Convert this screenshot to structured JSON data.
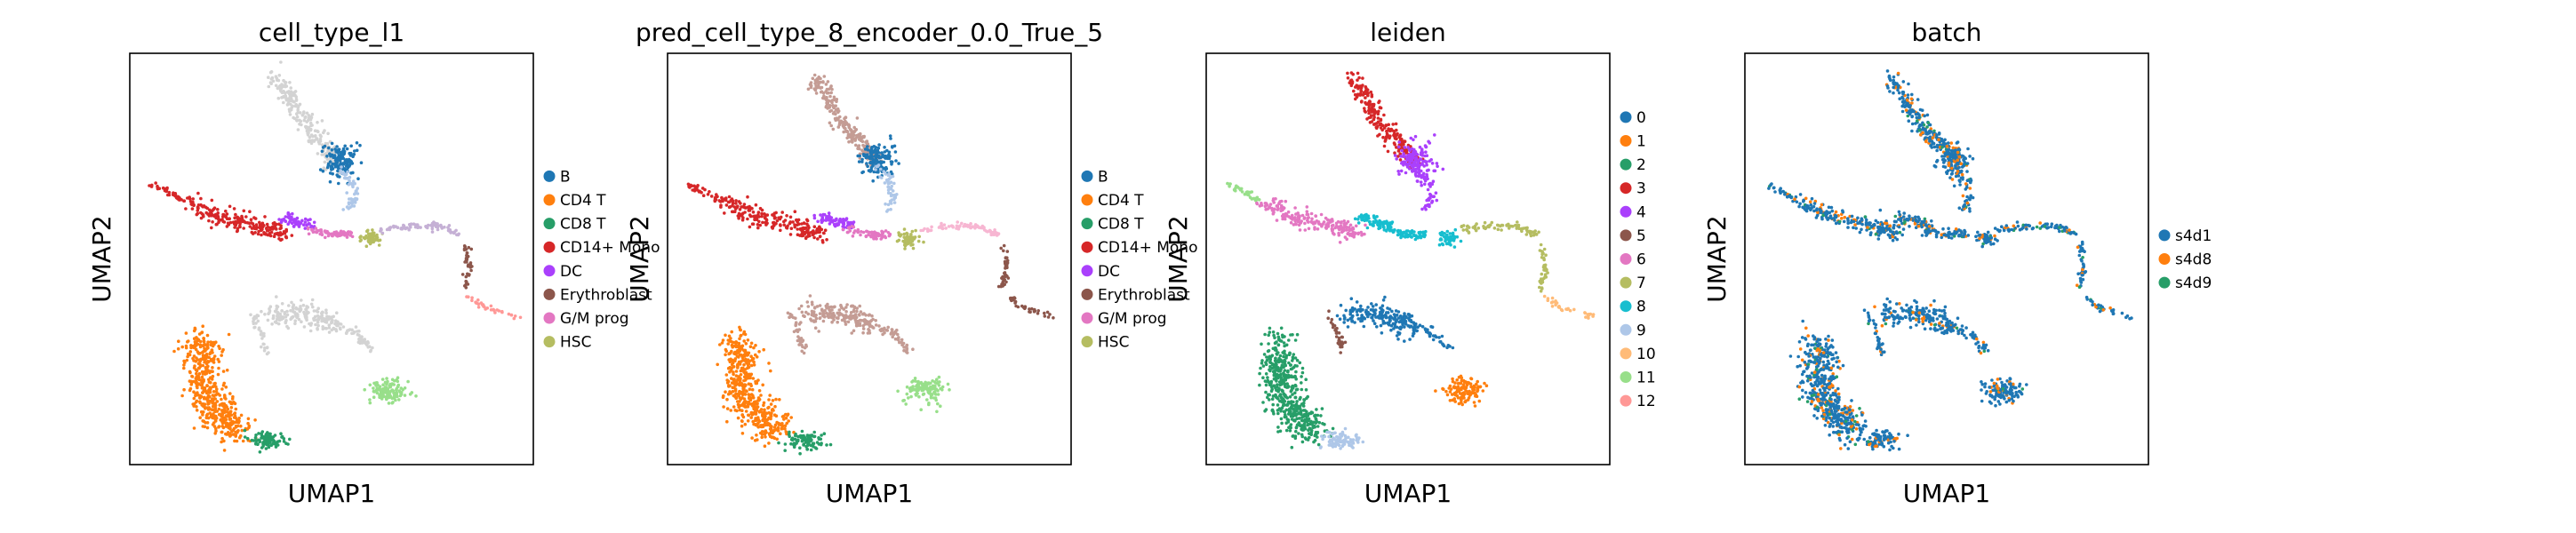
{
  "chart_data": [
    {
      "type": "scatter",
      "title": "cell_type_l1",
      "xlabel": "UMAP1",
      "ylabel": "UMAP2",
      "grid": false,
      "legend_position": "right",
      "series": [
        {
          "name": "B",
          "color": "#1f77b4"
        },
        {
          "name": "CD4 T",
          "color": "#ff7f0e"
        },
        {
          "name": "CD8 T",
          "color": "#279e68"
        },
        {
          "name": "CD14+ Mono",
          "color": "#d62728"
        },
        {
          "name": "DC",
          "color": "#aa40fc"
        },
        {
          "name": "Erythroblast",
          "color": "#8c564b"
        },
        {
          "name": "G/M prog",
          "color": "#e377c2"
        },
        {
          "name": "HSC",
          "color": "#b5bd61"
        }
      ]
    },
    {
      "type": "scatter",
      "title": "pred_cell_type_8_encoder_0.0_True_5",
      "xlabel": "UMAP1",
      "ylabel": "UMAP2",
      "grid": false,
      "legend_position": "right",
      "series": [
        {
          "name": "B",
          "color": "#1f77b4"
        },
        {
          "name": "CD4 T",
          "color": "#ff7f0e"
        },
        {
          "name": "CD8 T",
          "color": "#279e68"
        },
        {
          "name": "CD14+ Mono",
          "color": "#d62728"
        },
        {
          "name": "DC",
          "color": "#aa40fc"
        },
        {
          "name": "Erythroblast",
          "color": "#8c564b"
        },
        {
          "name": "G/M prog",
          "color": "#e377c2"
        },
        {
          "name": "HSC",
          "color": "#b5bd61"
        }
      ]
    },
    {
      "type": "scatter",
      "title": "leiden",
      "xlabel": "UMAP1",
      "ylabel": "UMAP2",
      "grid": false,
      "legend_position": "right",
      "series": [
        {
          "name": "0",
          "color": "#1f77b4"
        },
        {
          "name": "1",
          "color": "#ff7f0e"
        },
        {
          "name": "2",
          "color": "#279e68"
        },
        {
          "name": "3",
          "color": "#d62728"
        },
        {
          "name": "4",
          "color": "#aa40fc"
        },
        {
          "name": "5",
          "color": "#8c564b"
        },
        {
          "name": "6",
          "color": "#e377c2"
        },
        {
          "name": "7",
          "color": "#b5bd61"
        },
        {
          "name": "8",
          "color": "#17becf"
        },
        {
          "name": "9",
          "color": "#aec7e8"
        },
        {
          "name": "10",
          "color": "#ffbb78"
        },
        {
          "name": "11",
          "color": "#98df8a"
        },
        {
          "name": "12",
          "color": "#ff9896"
        }
      ]
    },
    {
      "type": "scatter",
      "title": "batch",
      "xlabel": "UMAP1",
      "ylabel": "UMAP2",
      "grid": false,
      "legend_position": "right",
      "series": [
        {
          "name": "s4d1",
          "color": "#1f77b4"
        },
        {
          "name": "s4d8",
          "color": "#ff7f0e"
        },
        {
          "name": "s4d9",
          "color": "#279e68"
        }
      ]
    }
  ]
}
